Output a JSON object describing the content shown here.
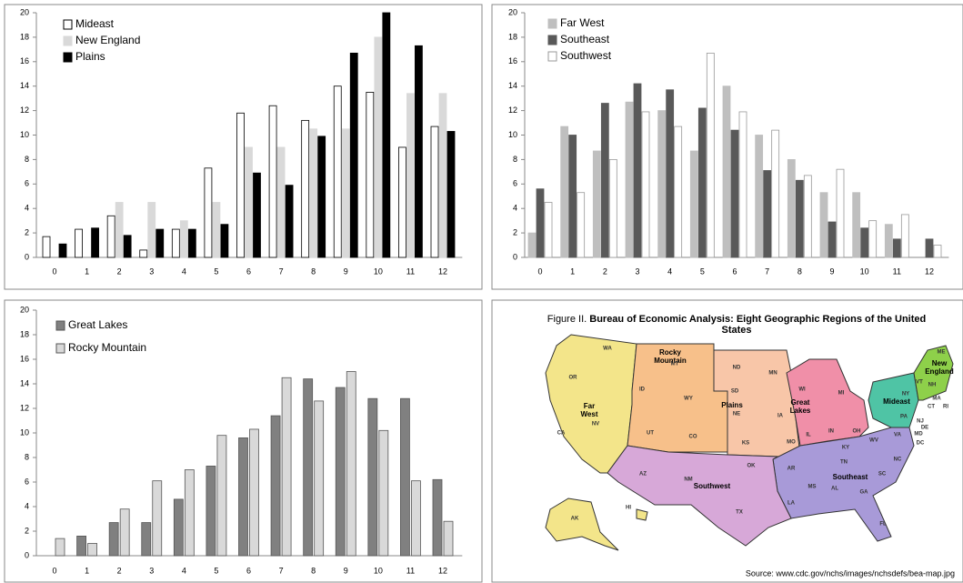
{
  "chart_data": [
    {
      "type": "bar",
      "categories": [
        "0",
        "1",
        "2",
        "3",
        "4",
        "5",
        "6",
        "7",
        "8",
        "9",
        "10",
        "11",
        "12"
      ],
      "ylim": [
        0,
        20
      ],
      "yticks": [
        0,
        2,
        4,
        6,
        8,
        10,
        12,
        14,
        16,
        18,
        20
      ],
      "series": [
        {
          "name": "Mideast",
          "color": "#ffffff",
          "edgecolor": "#000000",
          "values": [
            1.7,
            2.3,
            3.4,
            0.6,
            2.3,
            7.3,
            11.8,
            12.4,
            11.2,
            14.0,
            13.5,
            9.0,
            10.7
          ]
        },
        {
          "name": "New England",
          "color": "#d9d9d9",
          "edgecolor": "#d9d9d9",
          "values": [
            0,
            0,
            4.5,
            4.5,
            3.0,
            4.5,
            9.0,
            9.0,
            10.5,
            10.5,
            18.0,
            13.4,
            13.4
          ]
        },
        {
          "name": "Plains",
          "color": "#000000",
          "edgecolor": "#000000",
          "values": [
            1.1,
            2.4,
            1.8,
            2.3,
            2.3,
            2.7,
            6.9,
            5.9,
            9.9,
            16.7,
            20.0,
            17.3,
            10.3
          ]
        }
      ]
    },
    {
      "type": "bar",
      "categories": [
        "0",
        "1",
        "2",
        "3",
        "4",
        "5",
        "6",
        "7",
        "8",
        "9",
        "10",
        "11",
        "12"
      ],
      "ylim": [
        0,
        20
      ],
      "yticks": [
        0,
        2,
        4,
        6,
        8,
        10,
        12,
        14,
        16,
        18,
        20
      ],
      "series": [
        {
          "name": "Far West",
          "color": "#bfbfbf",
          "edgecolor": "#bfbfbf",
          "values": [
            2.0,
            10.7,
            8.7,
            12.7,
            12.0,
            8.7,
            14.0,
            10.0,
            8.0,
            5.3,
            5.3,
            2.7,
            0
          ]
        },
        {
          "name": "Southeast",
          "color": "#595959",
          "edgecolor": "#595959",
          "values": [
            5.6,
            10.0,
            12.6,
            14.2,
            13.7,
            12.2,
            10.4,
            7.1,
            6.3,
            2.9,
            2.4,
            1.5,
            1.5
          ]
        },
        {
          "name": "Southwest",
          "color": "#ffffff",
          "edgecolor": "#999999",
          "values": [
            4.5,
            5.3,
            8.0,
            11.9,
            10.7,
            16.7,
            11.9,
            10.4,
            6.7,
            7.2,
            3.0,
            3.5,
            1.0
          ]
        }
      ]
    },
    {
      "type": "bar",
      "categories": [
        "0",
        "1",
        "2",
        "3",
        "4",
        "5",
        "6",
        "7",
        "8",
        "9",
        "10",
        "11",
        "12"
      ],
      "ylim": [
        0,
        20
      ],
      "yticks": [
        0,
        2,
        4,
        6,
        8,
        10,
        12,
        14,
        16,
        18,
        20
      ],
      "series": [
        {
          "name": "Great Lakes",
          "color": "#808080",
          "edgecolor": "#555555",
          "values": [
            0,
            1.6,
            2.7,
            2.7,
            4.6,
            7.3,
            9.6,
            11.4,
            14.4,
            13.7,
            12.8,
            12.8,
            6.2
          ]
        },
        {
          "name": "Rocky Mountain",
          "color": "#d9d9d9",
          "edgecolor": "#555555",
          "values": [
            1.4,
            1.0,
            3.8,
            6.1,
            7.0,
            9.8,
            10.3,
            14.5,
            12.6,
            15.0,
            10.2,
            6.1,
            2.8
          ]
        }
      ]
    }
  ],
  "map": {
    "title_prefix": "Figure II.",
    "title": "Bureau of Economic Analysis: Eight Geographic Regions of the United States",
    "regions": [
      "Far West",
      "Rocky Mountain",
      "Plains",
      "Great Lakes",
      "Mideast",
      "New England",
      "Southeast",
      "Southwest"
    ],
    "states": [
      "WA",
      "OR",
      "CA",
      "NV",
      "ID",
      "MT",
      "WY",
      "UT",
      "CO",
      "AZ",
      "NM",
      "ND",
      "SD",
      "NE",
      "KS",
      "MN",
      "IA",
      "MO",
      "WI",
      "IL",
      "MI",
      "IN",
      "OH",
      "KY",
      "TN",
      "OK",
      "TX",
      "AR",
      "LA",
      "MS",
      "AL",
      "GA",
      "FL",
      "SC",
      "NC",
      "VA",
      "WV",
      "NY",
      "PA",
      "ME",
      "VT",
      "NH",
      "MA",
      "CT",
      "RI",
      "NJ",
      "DE",
      "MD",
      "DC",
      "AK",
      "HI"
    ],
    "source": "Source: www.cdc.gov/nchs/images/nchsdefs/bea-map.jpg"
  }
}
